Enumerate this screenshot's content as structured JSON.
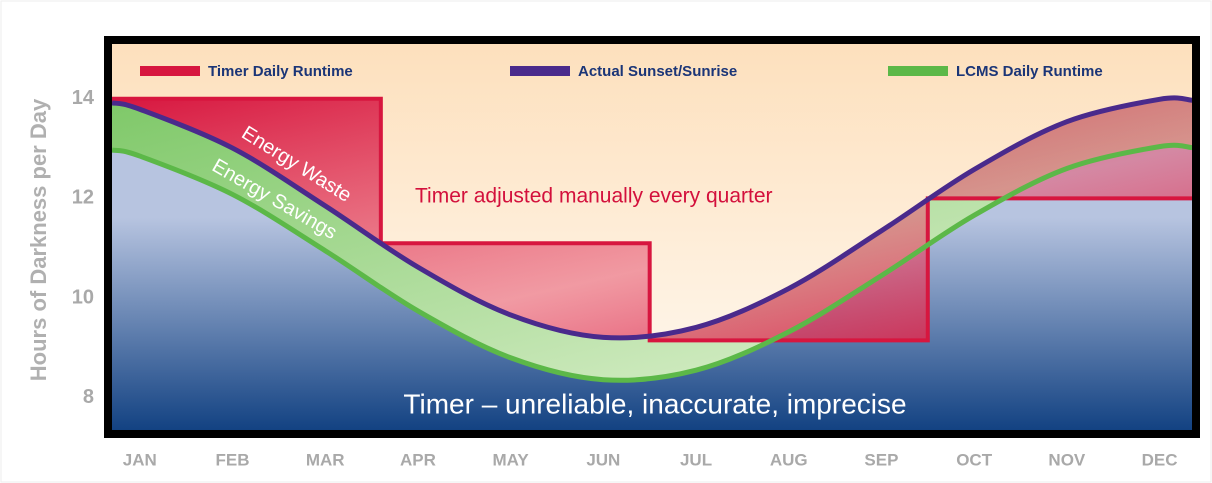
{
  "chart_data": {
    "type": "line",
    "ylabel": "Hours of Darkness per Day",
    "xlim": [
      -0.3,
      11.35
    ],
    "xticks": [
      {
        "value": 0,
        "label": "JAN"
      },
      {
        "value": 1,
        "label": "FEB"
      },
      {
        "value": 2,
        "label": "MAR"
      },
      {
        "value": 3,
        "label": "APR"
      },
      {
        "value": 4,
        "label": "MAY"
      },
      {
        "value": 5,
        "label": "JUN"
      },
      {
        "value": 6,
        "label": "JUL"
      },
      {
        "value": 7,
        "label": "AUG"
      },
      {
        "value": 8,
        "label": "SEP"
      },
      {
        "value": 9,
        "label": "OCT"
      },
      {
        "value": 10,
        "label": "NOV"
      },
      {
        "value": 11,
        "label": "DEC"
      }
    ],
    "ylim": [
      7.35,
      15.1
    ],
    "yticks": [
      8,
      10,
      12,
      14
    ],
    "legend": "top",
    "series": [
      {
        "name": "Timer Daily Runtime",
        "color": "#d7163f",
        "step": true,
        "x": [
          -0.3,
          2.6,
          2.6,
          5.5,
          5.5,
          8.5,
          8.5,
          11.35
        ],
        "values": [
          14,
          14,
          11.1,
          11.1,
          9.15,
          9.15,
          12,
          12
        ]
      },
      {
        "name": "Actual Sunset/Sunrise",
        "color": "#4a2a8c",
        "x": [
          -0.3,
          0,
          1,
          2,
          3,
          4,
          5,
          6,
          7,
          8,
          9,
          10,
          11,
          11.35
        ],
        "values": [
          13.92,
          13.79,
          13.01,
          11.85,
          10.62,
          9.66,
          9.21,
          9.41,
          10.19,
          11.35,
          12.58,
          13.54,
          13.99,
          13.97
        ]
      },
      {
        "name": "LCMS Daily Runtime",
        "color": "#5cb848",
        "x": [
          -0.3,
          0,
          1,
          2,
          3,
          4,
          5,
          6,
          7,
          8,
          9,
          10,
          11,
          11.35
        ],
        "values": [
          12.97,
          12.85,
          12.08,
          10.95,
          9.74,
          8.8,
          8.36,
          8.55,
          9.32,
          10.45,
          11.66,
          12.6,
          13.04,
          13.02
        ]
      }
    ],
    "annotations": [
      "Energy Waste",
      "Energy Savings",
      "Timer adjusted manually every quarter",
      "Timer – unreliable, inaccurate, imprecise"
    ]
  }
}
